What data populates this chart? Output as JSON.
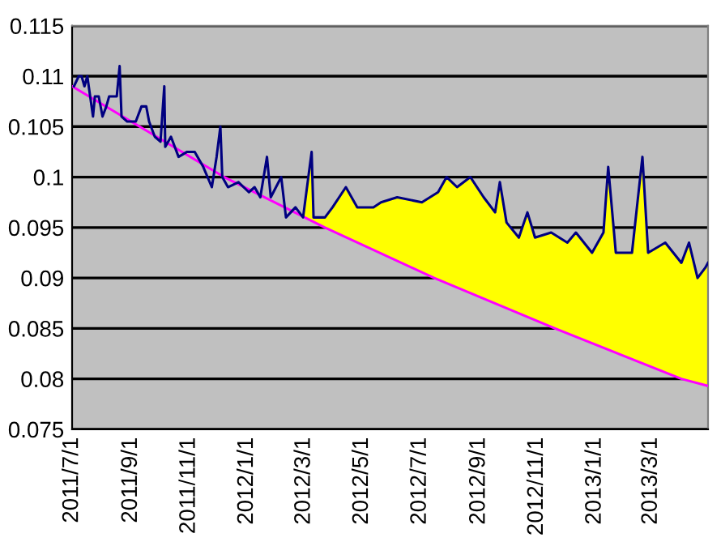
{
  "chart_data": {
    "type": "line",
    "xlim": [
      "2011-07-01",
      "2013-04-30"
    ],
    "xticks": [
      {
        "value": "2011-07-01",
        "label": "2011/7/1"
      },
      {
        "value": "2011-09-01",
        "label": "2011/9/1"
      },
      {
        "value": "2011-11-01",
        "label": "2011/11/1"
      },
      {
        "value": "2012-01-01",
        "label": "2012/1/1"
      },
      {
        "value": "2012-03-01",
        "label": "2012/3/1"
      },
      {
        "value": "2012-05-01",
        "label": "2012/5/1"
      },
      {
        "value": "2012-07-01",
        "label": "2012/7/1"
      },
      {
        "value": "2012-09-01",
        "label": "2012/9/1"
      },
      {
        "value": "2012-11-01",
        "label": "2012/11/1"
      },
      {
        "value": "2013-01-01",
        "label": "2013/1/1"
      },
      {
        "value": "2013-03-01",
        "label": "2013/3/1"
      }
    ],
    "ylim": [
      0.075,
      0.115
    ],
    "yticks": [
      0.075,
      0.08,
      0.085,
      0.09,
      0.095,
      0.1,
      0.105,
      0.11,
      0.115
    ],
    "grid": "y",
    "series": [
      {
        "type": "area",
        "color": "#ffff00",
        "x": [
          "2012-02-29",
          "2012-03-09",
          "2012-03-11",
          "2012-03-23",
          "2012-03-31",
          "2012-04-14",
          "2012-04-26",
          "2012-05-13",
          "2012-05-21",
          "2012-06-07",
          "2012-07-03",
          "2012-07-20",
          "2012-07-29",
          "2012-08-09",
          "2012-08-23",
          "2012-09-06",
          "2012-09-18",
          "2012-09-23",
          "2012-09-30",
          "2012-10-13",
          "2012-10-22",
          "2012-10-30",
          "2012-11-16",
          "2012-12-03",
          "2012-12-12",
          "2012-12-29",
          "2013-01-10",
          "2013-01-15",
          "2013-01-23",
          "2013-02-09",
          "2013-02-20",
          "2013-02-26",
          "2013-03-16",
          "2013-04-02",
          "2013-04-10",
          "2013-04-19",
          "2013-04-27",
          "2013-04-30"
        ],
        "values": [
          0.096,
          0.1025,
          0.096,
          0.096,
          0.097,
          0.099,
          0.097,
          0.097,
          0.0975,
          0.098,
          0.0975,
          0.0985,
          0.1,
          0.099,
          0.1,
          0.098,
          0.0965,
          0.0995,
          0.0955,
          0.094,
          0.0965,
          0.094,
          0.0945,
          0.0935,
          0.0945,
          0.0925,
          0.0945,
          0.101,
          0.0925,
          0.0925,
          0.102,
          0.0925,
          0.0935,
          0.0915,
          0.0935,
          0.09,
          0.091,
          0.0915
        ]
      },
      {
        "color": "#ff00ff",
        "x": [
          "2011-07-01",
          "2011-09-19",
          "2011-12-08",
          "2012-03-23",
          "2012-07-16",
          "2012-11-20",
          "2013-04-02",
          "2013-04-30"
        ],
        "values": [
          0.109,
          0.1045,
          0.1,
          0.095,
          0.09,
          0.085,
          0.08,
          0.0793
        ]
      },
      {
        "color": "#000080",
        "x": [
          "2011-07-03",
          "2011-07-08",
          "2011-07-11",
          "2011-07-14",
          "2011-07-17",
          "2011-07-20",
          "2011-07-23",
          "2011-07-25",
          "2011-07-29",
          "2011-08-02",
          "2011-08-06",
          "2011-08-09",
          "2011-08-17",
          "2011-08-20",
          "2011-08-22",
          "2011-08-28",
          "2011-09-06",
          "2011-09-12",
          "2011-09-17",
          "2011-09-20",
          "2011-09-26",
          "2011-10-02",
          "2011-10-06",
          "2011-10-07",
          "2011-10-13",
          "2011-10-21",
          "2011-10-30",
          "2011-11-07",
          "2011-11-16",
          "2011-11-25",
          "2011-11-30",
          "2011-12-04",
          "2011-12-06",
          "2011-12-12",
          "2011-12-23",
          "2012-01-03",
          "2012-01-09",
          "2012-01-15",
          "2012-01-22",
          "2012-01-26",
          "2012-02-06",
          "2012-02-11",
          "2012-02-21",
          "2012-02-29",
          "2012-03-09",
          "2012-03-11",
          "2012-03-23",
          "2012-03-31",
          "2012-04-14",
          "2012-04-26",
          "2012-05-13",
          "2012-05-21",
          "2012-06-07",
          "2012-07-03",
          "2012-07-20",
          "2012-07-29",
          "2012-08-09",
          "2012-08-23",
          "2012-09-06",
          "2012-09-18",
          "2012-09-23",
          "2012-09-30",
          "2012-10-13",
          "2012-10-22",
          "2012-10-30",
          "2012-11-16",
          "2012-12-03",
          "2012-12-12",
          "2012-12-29",
          "2013-01-10",
          "2013-01-15",
          "2013-01-23",
          "2013-02-09",
          "2013-02-20",
          "2013-02-26",
          "2013-03-16",
          "2013-04-02",
          "2013-04-10",
          "2013-04-19",
          "2013-04-27",
          "2013-04-30"
        ],
        "values": [
          0.109,
          0.11,
          0.11,
          0.109,
          0.11,
          0.108,
          0.106,
          0.108,
          0.108,
          0.106,
          0.107,
          0.108,
          0.108,
          0.111,
          0.106,
          0.1055,
          0.1055,
          0.107,
          0.107,
          0.1055,
          0.104,
          0.1035,
          0.109,
          0.103,
          0.104,
          0.102,
          0.1025,
          0.1025,
          0.101,
          0.099,
          0.102,
          0.105,
          0.1,
          0.099,
          0.0995,
          0.0985,
          0.099,
          0.098,
          0.102,
          0.098,
          0.1,
          0.096,
          0.097,
          0.096,
          0.1025,
          0.096,
          0.096,
          0.097,
          0.099,
          0.097,
          0.097,
          0.0975,
          0.098,
          0.0975,
          0.0985,
          0.1,
          0.099,
          0.1,
          0.098,
          0.0965,
          0.0995,
          0.0955,
          0.094,
          0.0965,
          0.094,
          0.0945,
          0.0935,
          0.0945,
          0.0925,
          0.0945,
          0.101,
          0.0925,
          0.0925,
          0.102,
          0.0925,
          0.0935,
          0.0915,
          0.0935,
          0.09,
          0.091,
          0.0915
        ]
      }
    ]
  }
}
